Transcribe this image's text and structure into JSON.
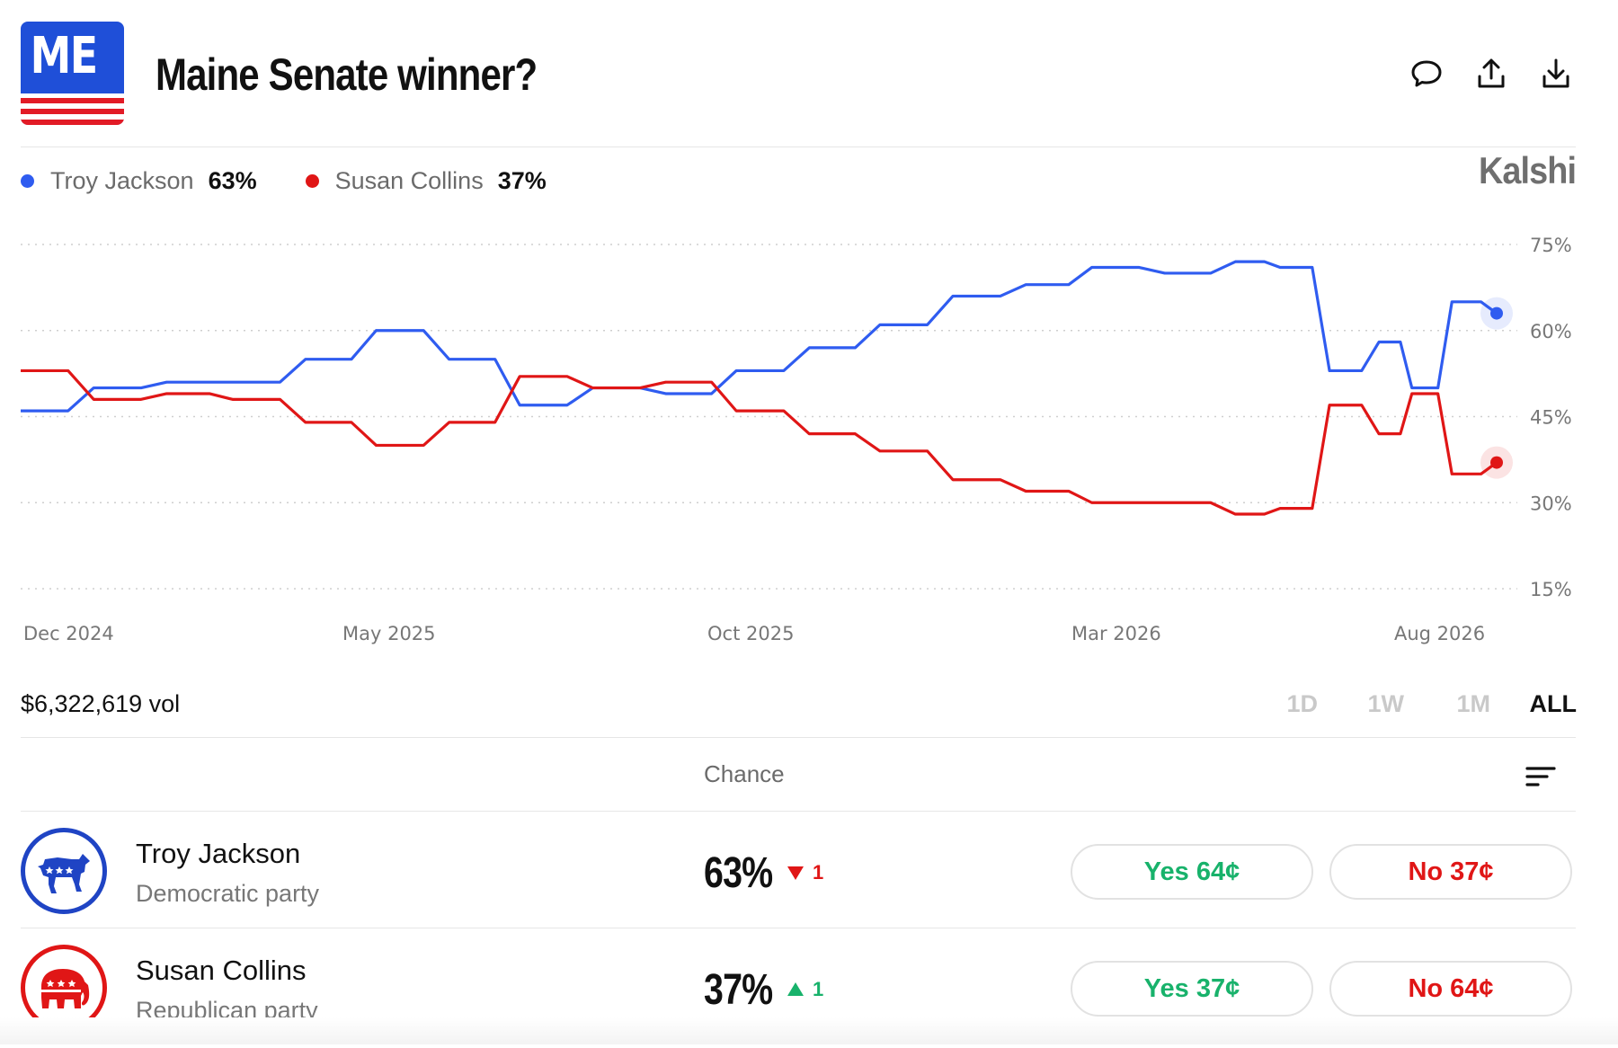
{
  "header": {
    "state_abbr": "ME",
    "title": "Maine Senate winner?",
    "icons": [
      "comment-icon",
      "share-icon",
      "download-icon"
    ]
  },
  "brand": "Kalshi",
  "legend": [
    {
      "name": "Troy Jackson",
      "value": "63%",
      "color": "#2f5cf0"
    },
    {
      "name": "Susan Collins",
      "value": "37%",
      "color": "#e01616"
    }
  ],
  "chart_data": {
    "type": "line",
    "x_ticks": [
      "Dec 2024",
      "May 2025",
      "Oct 2025",
      "Mar 2026",
      "Aug 2026"
    ],
    "y_ticks": [
      "75%",
      "60%",
      "45%",
      "30%",
      "15%"
    ],
    "ylim": [
      15,
      75
    ],
    "grid": true,
    "legend_position": "top-left",
    "x": [
      "2024-12-01",
      "2025-01-01",
      "2025-02-01",
      "2025-03-01",
      "2025-04-01",
      "2025-05-01",
      "2025-06-01",
      "2025-07-01",
      "2025-08-01",
      "2025-09-01",
      "2025-10-01",
      "2025-11-01",
      "2025-12-01",
      "2026-01-01",
      "2026-02-01",
      "2026-03-01",
      "2026-04-01",
      "2026-05-01",
      "2026-05-20",
      "2026-06-10",
      "2026-07-01",
      "2026-07-15",
      "2026-08-01",
      "2026-08-20"
    ],
    "series": [
      {
        "name": "Troy Jackson",
        "color": "#2f5cf0",
        "values": [
          46,
          50,
          51,
          51,
          55,
          60,
          55,
          47,
          50,
          49,
          53,
          57,
          61,
          66,
          68,
          71,
          70,
          72,
          71,
          53,
          58,
          50,
          65,
          63
        ]
      },
      {
        "name": "Susan Collins",
        "color": "#e01616",
        "values": [
          53,
          48,
          49,
          48,
          44,
          40,
          44,
          52,
          50,
          51,
          46,
          42,
          39,
          34,
          32,
          30,
          30,
          28,
          29,
          47,
          42,
          49,
          35,
          37
        ]
      }
    ]
  },
  "controls": {
    "volume": "$6,322,619 vol",
    "ranges": [
      {
        "label": "1D",
        "active": false
      },
      {
        "label": "1W",
        "active": false
      },
      {
        "label": "1M",
        "active": false
      },
      {
        "label": "ALL",
        "active": true
      }
    ]
  },
  "table": {
    "chance_header": "Chance",
    "rows": [
      {
        "name": "Troy Jackson",
        "party": "Democratic party",
        "party_icon": "donkey-icon",
        "party_color": "#1f44c4",
        "chance": "63%",
        "change": "1",
        "change_direction": "down",
        "change_color": "#e01616",
        "yes": "Yes 64¢",
        "no": "No 37¢"
      },
      {
        "name": "Susan Collins",
        "party": "Republican party",
        "party_icon": "elephant-icon",
        "party_color": "#e01616",
        "chance": "37%",
        "change": "1",
        "change_direction": "up",
        "change_color": "#18b26b",
        "yes": "Yes 37¢",
        "no": "No 64¢"
      }
    ]
  }
}
